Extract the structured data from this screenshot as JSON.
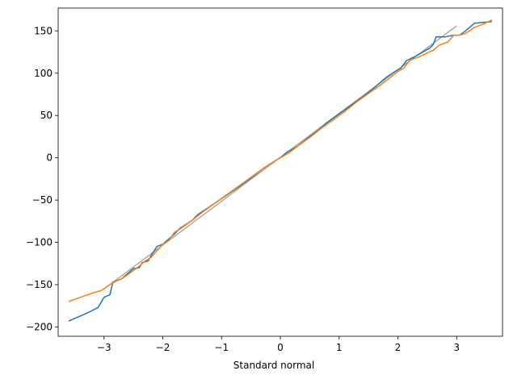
{
  "chart_data": {
    "type": "line",
    "title": "",
    "xlabel": "Standard normal",
    "ylabel": "",
    "xlim": [
      -3.78,
      3.78
    ],
    "ylim": [
      -211,
      177
    ],
    "xticks": [
      -3,
      -2,
      -1,
      0,
      1,
      2,
      3
    ],
    "yticks": [
      -200,
      -150,
      -100,
      -50,
      0,
      50,
      100,
      150
    ],
    "xtick_labels": [
      "−3",
      "−2",
      "−1",
      "0",
      "1",
      "2",
      "3"
    ],
    "ytick_labels": [
      "−200",
      "−150",
      "−100",
      "−50",
      "0",
      "50",
      "100",
      "150"
    ],
    "grid": false,
    "series": [
      {
        "color": "#aaaaaa",
        "points": [
          [
            -3.0,
            -155
          ],
          [
            3.0,
            156
          ]
        ]
      },
      {
        "color": "#1f77b4",
        "points": [
          [
            -3.6,
            -193
          ],
          [
            -3.3,
            -184
          ],
          [
            -3.1,
            -177
          ],
          [
            -3.0,
            -165
          ],
          [
            -2.9,
            -162
          ],
          [
            -2.85,
            -147
          ],
          [
            -2.7,
            -143
          ],
          [
            -2.6,
            -137
          ],
          [
            -2.5,
            -131
          ],
          [
            -2.4,
            -130
          ],
          [
            -2.35,
            -124
          ],
          [
            -2.25,
            -122
          ],
          [
            -2.2,
            -116
          ],
          [
            -2.1,
            -105
          ],
          [
            -2.0,
            -102
          ],
          [
            -1.9,
            -96
          ],
          [
            -1.8,
            -90
          ],
          [
            -1.7,
            -83
          ],
          [
            -1.5,
            -74
          ],
          [
            -1.4,
            -67
          ],
          [
            -1.25,
            -60
          ],
          [
            -1.1,
            -53
          ],
          [
            -0.95,
            -46
          ],
          [
            -0.7,
            -34
          ],
          [
            -0.5,
            -24
          ],
          [
            -0.3,
            -13
          ],
          [
            -0.1,
            -4
          ],
          [
            0.0,
            0
          ],
          [
            0.1,
            6
          ],
          [
            0.3,
            14
          ],
          [
            0.5,
            25
          ],
          [
            0.65,
            33
          ],
          [
            0.8,
            42
          ],
          [
            1.0,
            52
          ],
          [
            1.2,
            62
          ],
          [
            1.4,
            72
          ],
          [
            1.6,
            83
          ],
          [
            1.8,
            95
          ],
          [
            1.95,
            102
          ],
          [
            2.05,
            106
          ],
          [
            2.15,
            115
          ],
          [
            2.3,
            120
          ],
          [
            2.45,
            126
          ],
          [
            2.55,
            130
          ],
          [
            2.6,
            134
          ],
          [
            2.65,
            143
          ],
          [
            2.8,
            143
          ],
          [
            2.95,
            145
          ],
          [
            3.05,
            145
          ],
          [
            3.15,
            150
          ],
          [
            3.3,
            159
          ],
          [
            3.45,
            160
          ],
          [
            3.6,
            161
          ]
        ]
      },
      {
        "color": "#ff7f0e",
        "points": [
          [
            -3.6,
            -170
          ],
          [
            -3.4,
            -165
          ],
          [
            -3.2,
            -160
          ],
          [
            -3.05,
            -157
          ],
          [
            -2.9,
            -150
          ],
          [
            -2.8,
            -146
          ],
          [
            -2.7,
            -143
          ],
          [
            -2.55,
            -136
          ],
          [
            -2.4,
            -128
          ],
          [
            -2.3,
            -122
          ],
          [
            -2.2,
            -118
          ],
          [
            -2.1,
            -110
          ],
          [
            -2.0,
            -102
          ],
          [
            -1.9,
            -98
          ],
          [
            -1.8,
            -88
          ],
          [
            -1.7,
            -84
          ],
          [
            -1.5,
            -74
          ],
          [
            -1.3,
            -63
          ],
          [
            -1.1,
            -53
          ],
          [
            -0.9,
            -43
          ],
          [
            -0.7,
            -33
          ],
          [
            -0.5,
            -23
          ],
          [
            -0.3,
            -13
          ],
          [
            -0.1,
            -4
          ],
          [
            0.0,
            0
          ],
          [
            0.15,
            6
          ],
          [
            0.3,
            14
          ],
          [
            0.5,
            24
          ],
          [
            0.7,
            35
          ],
          [
            0.9,
            45
          ],
          [
            1.1,
            55
          ],
          [
            1.3,
            66
          ],
          [
            1.5,
            76
          ],
          [
            1.7,
            86
          ],
          [
            1.85,
            94
          ],
          [
            2.0,
            102
          ],
          [
            2.1,
            106
          ],
          [
            2.2,
            115
          ],
          [
            2.35,
            119
          ],
          [
            2.5,
            124
          ],
          [
            2.6,
            127
          ],
          [
            2.7,
            133
          ],
          [
            2.85,
            137
          ],
          [
            2.95,
            145
          ],
          [
            3.05,
            145
          ],
          [
            3.15,
            147
          ],
          [
            3.3,
            154
          ],
          [
            3.45,
            158
          ],
          [
            3.6,
            163
          ]
        ]
      }
    ]
  }
}
